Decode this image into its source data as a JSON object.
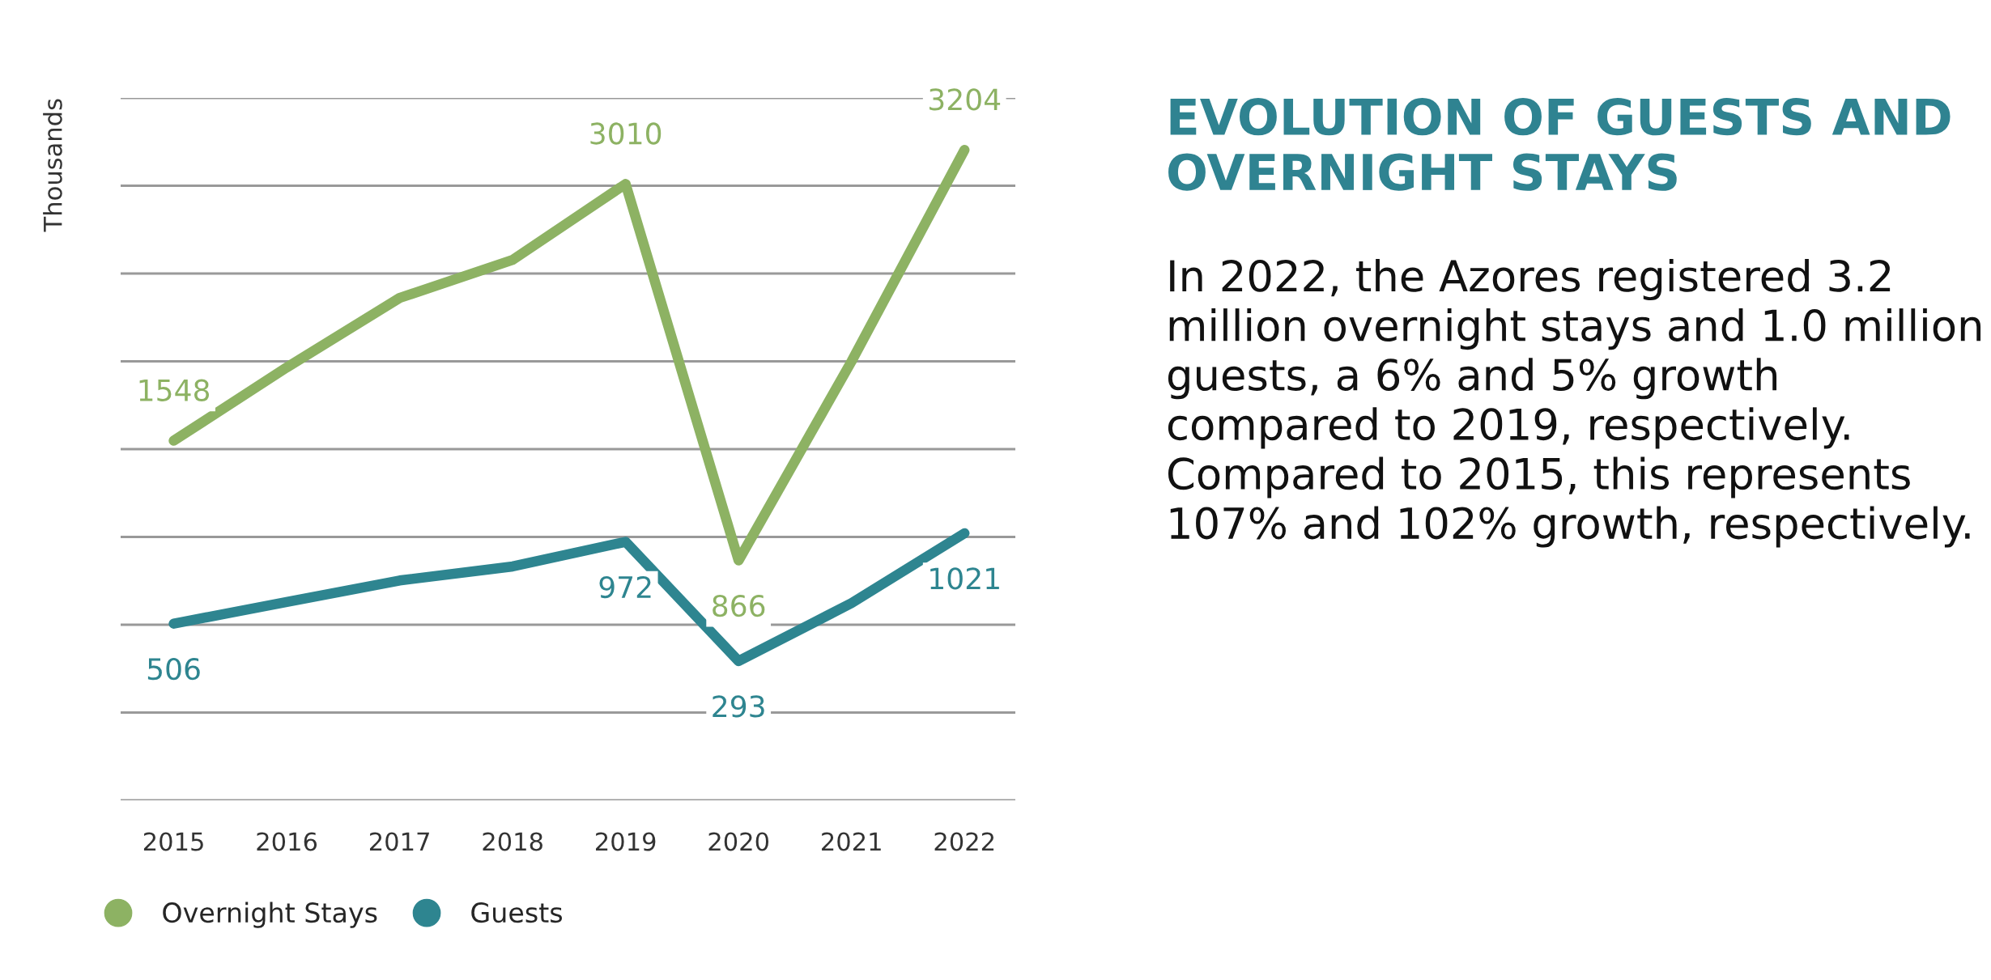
{
  "chart_data": {
    "type": "line",
    "title": "EVOLUTION OF GUESTS AND OVERNIGHT STAYS",
    "ylabel": "Thousands",
    "annotations": [
      "In 2022, the Azores registered 3.2 million overnight stays and 1.0 million guests, a 6% and 5% growth compared to 2019, respectively. Compared to 2015, this represents 107% and 102% growth, respectively."
    ],
    "categories": [
      "2015",
      "2016",
      "2017",
      "2018",
      "2019",
      "2020",
      "2021",
      "2022"
    ],
    "series": [
      {
        "name": "Overnight Stays",
        "color": "#8db263",
        "values": [
          1548,
          1965,
          2361,
          2578,
          3010,
          866,
          2000,
          3204
        ],
        "value_labels": [
          "1548",
          null,
          null,
          null,
          "3010",
          "866",
          null,
          "3204"
        ]
      },
      {
        "name": "Guests",
        "color": "#2e8590",
        "values": [
          506,
          630,
          752,
          832,
          972,
          293,
          623,
          1021
        ],
        "value_labels": [
          "506",
          null,
          null,
          null,
          "972",
          "293",
          null,
          "1021"
        ]
      }
    ],
    "ylim": [
      -500,
      3500
    ],
    "yticks": [
      {
        "value": -500,
        "label": null
      },
      {
        "value": 0,
        "label": null
      },
      {
        "value": 500,
        "label": null
      },
      {
        "value": 1000,
        "label": null
      },
      {
        "value": 1500,
        "label": null
      },
      {
        "value": 2000,
        "label": null
      },
      {
        "value": 2500,
        "label": null
      },
      {
        "value": 3000,
        "label": null
      },
      {
        "value": 3500,
        "label": null
      }
    ],
    "tick_labels": "x",
    "grid": "y",
    "legend": "bottom left",
    "line_style": "solid"
  }
}
